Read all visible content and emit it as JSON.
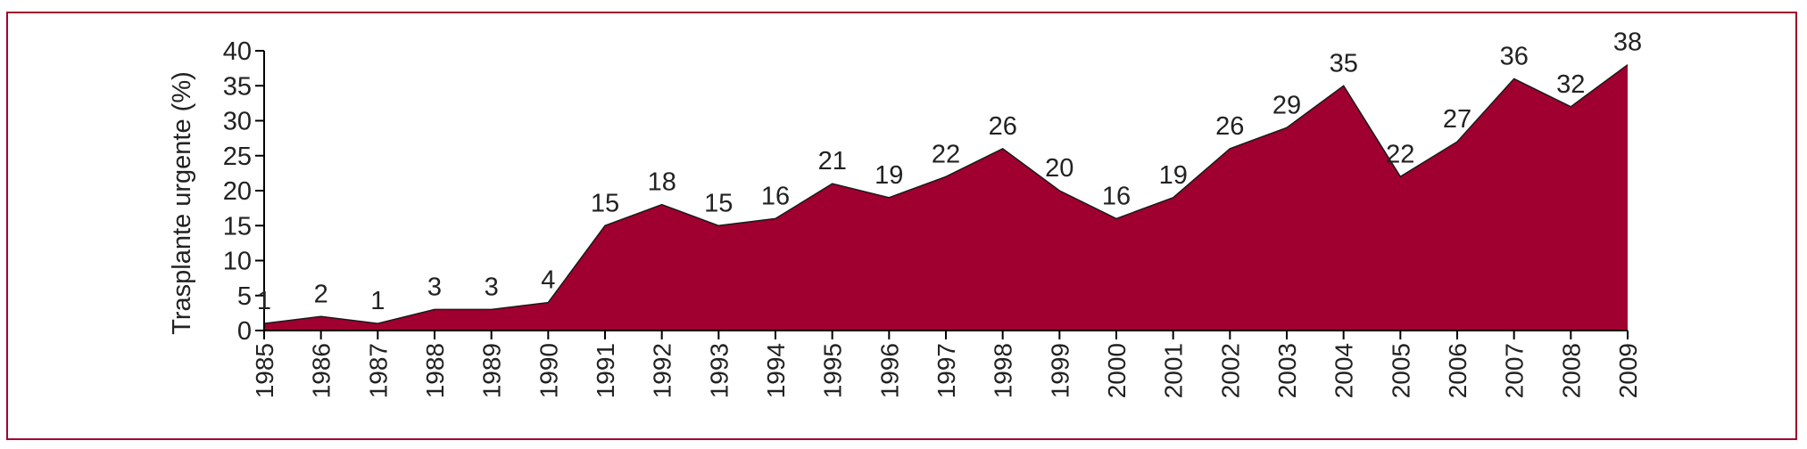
{
  "chart_data": {
    "type": "area",
    "title": "",
    "xlabel": "",
    "ylabel": "Trasplante urgente (%)",
    "x": [
      "1985",
      "1986",
      "1987",
      "1988",
      "1989",
      "1990",
      "1991",
      "1992",
      "1993",
      "1994",
      "1995",
      "1996",
      "1997",
      "1998",
      "1999",
      "2000",
      "2001",
      "2002",
      "2003",
      "2004",
      "2005",
      "2006",
      "2007",
      "2008",
      "2009"
    ],
    "values": [
      1,
      2,
      1,
      3,
      3,
      4,
      15,
      18,
      15,
      16,
      21,
      19,
      22,
      26,
      20,
      16,
      19,
      26,
      29,
      35,
      22,
      27,
      36,
      32,
      38
    ],
    "labels": [
      "1",
      "2",
      "1",
      "3",
      "3",
      "4",
      "15",
      "18",
      "15",
      "16",
      "21",
      "19",
      "22",
      "26",
      "20",
      "16",
      "19",
      "26",
      "29",
      "35",
      "22",
      "27",
      "36",
      "32",
      "38"
    ],
    "yticks": [
      "0",
      "5",
      "10",
      "15",
      "20",
      "25",
      "30",
      "35",
      "40"
    ],
    "ylim": [
      0,
      40
    ],
    "grid": false,
    "legend": "none",
    "fill_color": "#a0002f",
    "frame_color": "#a0002f"
  }
}
